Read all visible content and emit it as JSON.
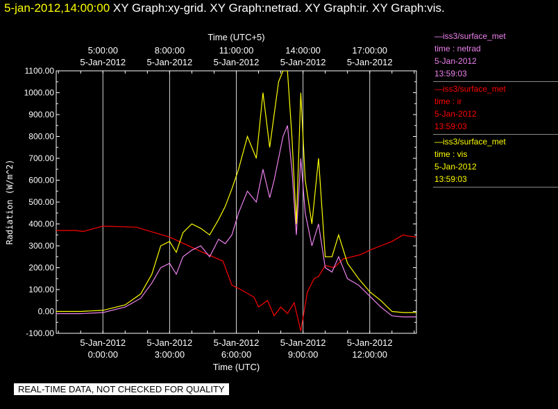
{
  "header": {
    "timestamp": "5-jan-2012,14:00:00",
    "graphs": " XY Graph:xy-grid.  XY Graph:netrad.  XY Graph:ir.  XY Graph:vis."
  },
  "legend": [
    {
      "title": "—iss3/surface_met",
      "var": "time : netrad",
      "date": "5-Jan-2012",
      "time": "13:59:03",
      "color": "#ee82ee"
    },
    {
      "title": "—iss3/surface_met",
      "var": "time : ir",
      "date": "5-Jan-2012",
      "time": "13:59:03",
      "color": "#ff0000"
    },
    {
      "title": "—iss3/surface_met",
      "var": "time : vis",
      "date": "5-Jan-2012",
      "time": "13:59:03",
      "color": "#ffff00"
    }
  ],
  "disclaimer": "REAL-TIME DATA, NOT CHECKED FOR QUALITY",
  "chart_data": {
    "type": "line",
    "grid": true,
    "xlabel": "Time (UTC)",
    "x2label": "Time (UTC+5)",
    "ylabel": "Radiation  (W/m^2)",
    "xlim": [
      -2.1,
      14.1
    ],
    "ylim": [
      -100,
      1100
    ],
    "x_ticks": [
      {
        "value": 0,
        "date": "5-Jan-2012",
        "time": "0:00:00"
      },
      {
        "value": 3,
        "date": "5-Jan-2012",
        "time": "3:00:00"
      },
      {
        "value": 6,
        "date": "5-Jan-2012",
        "time": "6:00:00"
      },
      {
        "value": 9,
        "date": "5-Jan-2012",
        "time": "9:00:00"
      },
      {
        "value": 12,
        "date": "5-Jan-2012",
        "time": "12:00:00"
      }
    ],
    "x2_ticks": [
      {
        "value": 0,
        "time": "5:00:00",
        "date": "5-Jan-2012"
      },
      {
        "value": 3,
        "time": "8:00:00",
        "date": "5-Jan-2012"
      },
      {
        "value": 6,
        "time": "11:00:00",
        "date": "5-Jan-2012"
      },
      {
        "value": 9,
        "time": "14:00:00",
        "date": "5-Jan-2012"
      },
      {
        "value": 12,
        "time": "17:00:00",
        "date": "5-Jan-2012"
      }
    ],
    "y_ticks": [
      -100,
      0,
      100,
      200,
      300,
      400,
      500,
      600,
      700,
      800,
      900,
      1000,
      1100
    ],
    "y_tick_labels": [
      "-100.00",
      "0.00",
      "100.00",
      "200.00",
      "300.00",
      "400.00",
      "500.00",
      "600.00",
      "700.00",
      "800.00",
      "900.00",
      "1000.00",
      "1100.00"
    ],
    "series": [
      {
        "name": "time : ir",
        "color": "#ff0000",
        "x": [
          -2.1,
          -1.2,
          -0.9,
          0,
          1.5,
          3,
          4.5,
          5.4,
          5.8,
          6.2,
          6.8,
          7,
          7.4,
          7.7,
          8,
          8.3,
          8.6,
          8.9,
          9.2,
          9.5,
          9.7,
          10,
          10.4,
          10.8,
          11.2,
          11.6,
          12,
          12.5,
          13,
          13.5,
          13.7,
          14.1
        ],
        "y": [
          370,
          370,
          365,
          390,
          385,
          340,
          270,
          230,
          120,
          100,
          65,
          20,
          50,
          -20,
          20,
          -10,
          40,
          -90,
          90,
          150,
          160,
          210,
          200,
          240,
          250,
          260,
          280,
          300,
          320,
          350,
          345,
          340
        ]
      },
      {
        "name": "time : netrad",
        "color": "#ee82ee",
        "x": [
          -2.1,
          -1,
          0,
          1,
          1.7,
          2.2,
          2.6,
          3,
          3.3,
          3.6,
          4,
          4.4,
          4.8,
          5.2,
          5.5,
          5.8,
          6.1,
          6.5,
          6.9,
          7.2,
          7.5,
          7.7,
          7.9,
          8.1,
          8.3,
          8.5,
          8.7,
          8.9,
          9.1,
          9.4,
          9.7,
          10,
          10.3,
          10.6,
          11,
          11.5,
          12,
          12.5,
          13,
          13.5,
          14.1
        ],
        "y": [
          -10,
          -10,
          -5,
          20,
          60,
          130,
          200,
          220,
          170,
          250,
          280,
          300,
          250,
          330,
          310,
          350,
          450,
          550,
          500,
          650,
          520,
          600,
          700,
          800,
          850,
          650,
          350,
          700,
          450,
          300,
          400,
          200,
          180,
          250,
          150,
          120,
          70,
          20,
          -20,
          -25,
          -25
        ]
      },
      {
        "name": "time : vis",
        "color": "#ffff00",
        "x": [
          -2.1,
          -1,
          0,
          1,
          1.7,
          2.2,
          2.6,
          3,
          3.3,
          3.6,
          4,
          4.4,
          4.8,
          5.2,
          5.5,
          5.8,
          6.1,
          6.5,
          6.9,
          7.2,
          7.5,
          7.7,
          7.9,
          8.1,
          8.3,
          8.5,
          8.7,
          8.9,
          9.1,
          9.4,
          9.7,
          10,
          10.3,
          10.6,
          11,
          11.5,
          12,
          12.5,
          13,
          13.5,
          14.1
        ],
        "y": [
          0,
          0,
          5,
          30,
          80,
          170,
          300,
          320,
          270,
          360,
          400,
          380,
          350,
          420,
          480,
          560,
          650,
          800,
          700,
          1000,
          750,
          900,
          1050,
          1100,
          1100,
          800,
          400,
          1000,
          600,
          400,
          700,
          250,
          250,
          350,
          220,
          150,
          90,
          50,
          0,
          -5,
          -5
        ]
      }
    ]
  }
}
